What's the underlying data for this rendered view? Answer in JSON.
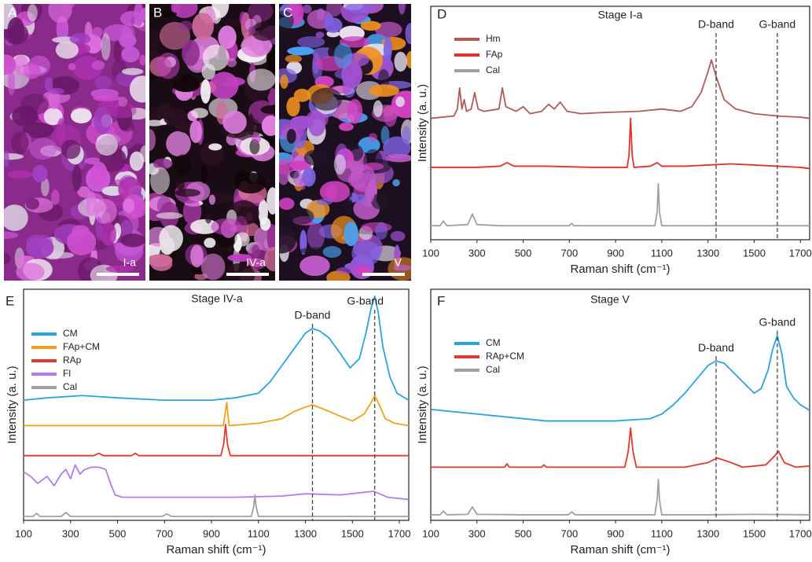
{
  "photos": [
    {
      "label": "A",
      "stage": "I-a"
    },
    {
      "label": "B",
      "stage": "IV-a"
    },
    {
      "label": "C",
      "stage": "V"
    }
  ],
  "chart_data": [
    {
      "type": "line",
      "panel": "D",
      "title": "Stage I-a",
      "x_label": "Raman shift (cm⁻¹)",
      "y_label": "Intensity (a. u.)",
      "xlim": [
        100,
        1740
      ],
      "xticks": [
        100,
        300,
        500,
        700,
        900,
        1100,
        1300,
        1500,
        1700
      ],
      "ylim": [
        0,
        100
      ],
      "legend": "upper left",
      "annotations": [
        {
          "text": "D-band",
          "x": 1335
        },
        {
          "text": "G-band",
          "x": 1600
        }
      ],
      "series": [
        {
          "name": "Hm",
          "color": "#b05a5a",
          "x": [
            100,
            150,
            200,
            215,
            225,
            235,
            245,
            255,
            275,
            290,
            305,
            330,
            395,
            410,
            425,
            470,
            500,
            530,
            580,
            610,
            635,
            660,
            690,
            750,
            850,
            1000,
            1100,
            1180,
            1230,
            1270,
            1300,
            1315,
            1335,
            1370,
            1420,
            1500,
            1600,
            1700,
            1740
          ],
          "values": [
            52,
            52.5,
            53,
            56,
            65,
            56,
            60,
            55,
            56,
            63,
            56,
            55,
            56,
            65,
            57,
            55,
            57,
            54,
            55,
            58,
            56,
            59,
            55,
            54,
            54.5,
            55,
            56,
            55,
            57,
            63,
            72,
            77,
            70,
            60,
            56,
            54,
            53,
            52.5,
            52
          ]
        },
        {
          "name": "FAp",
          "color": "#e0312b",
          "x": [
            100,
            200,
            300,
            400,
            430,
            460,
            600,
            800,
            900,
            950,
            958,
            965,
            972,
            980,
            1050,
            1080,
            1100,
            1200,
            1300,
            1400,
            1500,
            1600,
            1700,
            1740
          ],
          "values": [
            31,
            31,
            31,
            31.5,
            33,
            31.5,
            31.5,
            31,
            31,
            31,
            36,
            52,
            36,
            31,
            31.5,
            33,
            31.5,
            31.5,
            32,
            32.5,
            32,
            31.5,
            31,
            30.5
          ]
        },
        {
          "name": "Cal",
          "color": "#a0a0a0",
          "x": [
            100,
            140,
            155,
            170,
            260,
            280,
            300,
            400,
            600,
            700,
            710,
            720,
            900,
            1070,
            1080,
            1085,
            1090,
            1100,
            1300,
            1500,
            1740
          ],
          "values": [
            6,
            6,
            8,
            6,
            6.5,
            11,
            6.5,
            6,
            6,
            6,
            7,
            6,
            6,
            6,
            12,
            24,
            12,
            6,
            6,
            6,
            6
          ]
        }
      ]
    },
    {
      "type": "line",
      "panel": "E",
      "title": "Stage IV-a",
      "x_label": "Raman shift (cm⁻¹)",
      "y_label": "Intensity (a. u.)",
      "xlim": [
        100,
        1740
      ],
      "xticks": [
        100,
        300,
        500,
        700,
        900,
        1100,
        1300,
        1500,
        1700
      ],
      "ylim": [
        0,
        100
      ],
      "legend": "upper left",
      "annotations": [
        {
          "text": "D-band",
          "x": 1330
        },
        {
          "text": "G-band",
          "x": 1595
        }
      ],
      "series": [
        {
          "name": "CM",
          "color": "#2ba3dc",
          "x": [
            100,
            200,
            350,
            500,
            700,
            900,
            1000,
            1100,
            1150,
            1200,
            1250,
            1300,
            1330,
            1360,
            1400,
            1450,
            1490,
            1530,
            1560,
            1580,
            1595,
            1610,
            1630,
            1660,
            1690,
            1740
          ],
          "values": [
            52,
            53,
            54,
            53,
            52,
            52,
            53,
            55,
            60,
            67,
            74,
            81,
            83,
            82,
            79,
            72,
            66,
            70,
            82,
            92,
            97,
            90,
            75,
            62,
            55,
            52
          ]
        },
        {
          "name": "FAp+CM",
          "color": "#f0a020",
          "x": [
            100,
            300,
            500,
            700,
            900,
            950,
            958,
            965,
            975,
            1100,
            1200,
            1250,
            1300,
            1330,
            1380,
            1450,
            1500,
            1550,
            1580,
            1595,
            1610,
            1640,
            1680,
            1740
          ],
          "values": [
            41,
            41,
            41,
            41,
            41,
            41,
            46,
            51,
            41,
            42,
            44,
            47,
            49,
            50,
            48,
            45,
            43,
            46,
            51,
            54,
            51,
            44,
            42,
            41
          ]
        },
        {
          "name": "RAp",
          "color": "#e03a2e",
          "x": [
            100,
            300,
            400,
            420,
            440,
            560,
            575,
            590,
            800,
            940,
            952,
            960,
            968,
            980,
            1200,
            1500,
            1740
          ],
          "values": [
            28,
            28,
            28,
            29,
            28,
            28,
            29,
            28,
            28,
            28,
            33,
            41.5,
            33,
            28,
            28,
            28,
            28
          ]
        },
        {
          "name": "Fl",
          "color": "#b07ee8",
          "x": [
            100,
            130,
            160,
            200,
            230,
            260,
            280,
            300,
            320,
            340,
            360,
            390,
            420,
            450,
            470,
            490,
            520,
            600,
            800,
            1000,
            1200,
            1300,
            1450,
            1590,
            1650,
            1740
          ],
          "values": [
            21,
            19,
            16,
            19,
            15,
            20,
            22,
            18,
            24,
            20,
            22,
            23,
            23,
            22,
            16,
            11,
            10,
            10,
            10,
            10,
            10.5,
            11.5,
            11,
            12.6,
            10,
            9
          ]
        },
        {
          "name": "Cal",
          "color": "#a0a0a0",
          "x": [
            100,
            140,
            155,
            170,
            260,
            280,
            300,
            500,
            690,
            710,
            730,
            1070,
            1080,
            1085,
            1090,
            1100,
            1300,
            1740
          ],
          "values": [
            1.7,
            1.7,
            3,
            1.7,
            1.7,
            3.4,
            1.7,
            1.7,
            1.7,
            2.8,
            1.7,
            1.7,
            6,
            11,
            6,
            1.7,
            1.7,
            1.7
          ]
        }
      ]
    },
    {
      "type": "line",
      "panel": "F",
      "title": "Stage V",
      "x_label": "Raman shift (cm⁻¹)",
      "y_label": "Intensity (a. u.)",
      "xlim": [
        100,
        1740
      ],
      "xticks": [
        100,
        300,
        500,
        700,
        900,
        1100,
        1300,
        1500,
        1700
      ],
      "ylim": [
        0,
        100
      ],
      "legend": "upper left",
      "annotations": [
        {
          "text": "D-band",
          "x": 1335
        },
        {
          "text": "G-band",
          "x": 1600
        }
      ],
      "series": [
        {
          "name": "CM",
          "color": "#2ba3dc",
          "x": [
            100,
            300,
            600,
            900,
            1050,
            1100,
            1150,
            1200,
            1250,
            1300,
            1335,
            1370,
            1400,
            1450,
            1500,
            1530,
            1560,
            1580,
            1600,
            1620,
            1640,
            1670,
            1700,
            1740
          ],
          "values": [
            48,
            46,
            43,
            43,
            44,
            46,
            50,
            55,
            61,
            67,
            69,
            68,
            65,
            60,
            55,
            57,
            65,
            74,
            80,
            72,
            58,
            53,
            50,
            47.6
          ]
        },
        {
          "name": "RAp+CM",
          "color": "#e03a2e",
          "x": [
            100,
            300,
            420,
            430,
            440,
            580,
            590,
            600,
            800,
            940,
            955,
            965,
            975,
            990,
            1200,
            1300,
            1340,
            1400,
            1450,
            1550,
            1590,
            1605,
            1630,
            1680,
            1740
          ],
          "values": [
            23,
            23,
            23,
            24.5,
            23,
            23,
            24,
            23,
            23,
            23,
            30,
            40,
            30,
            23,
            23,
            25,
            27,
            25,
            23,
            24,
            28,
            30,
            25,
            23,
            23.5
          ]
        },
        {
          "name": "Cal",
          "color": "#a0a0a0",
          "x": [
            100,
            140,
            155,
            170,
            260,
            280,
            300,
            500,
            695,
            710,
            725,
            1070,
            1080,
            1085,
            1090,
            1100,
            1300,
            1500,
            1740
          ],
          "values": [
            2.4,
            2.4,
            4,
            2.4,
            2.6,
            5.8,
            2.6,
            2.4,
            2.4,
            3.7,
            2.4,
            2.4,
            9,
            17.7,
            9,
            2.4,
            2.4,
            2.6,
            2.4
          ]
        }
      ]
    }
  ]
}
